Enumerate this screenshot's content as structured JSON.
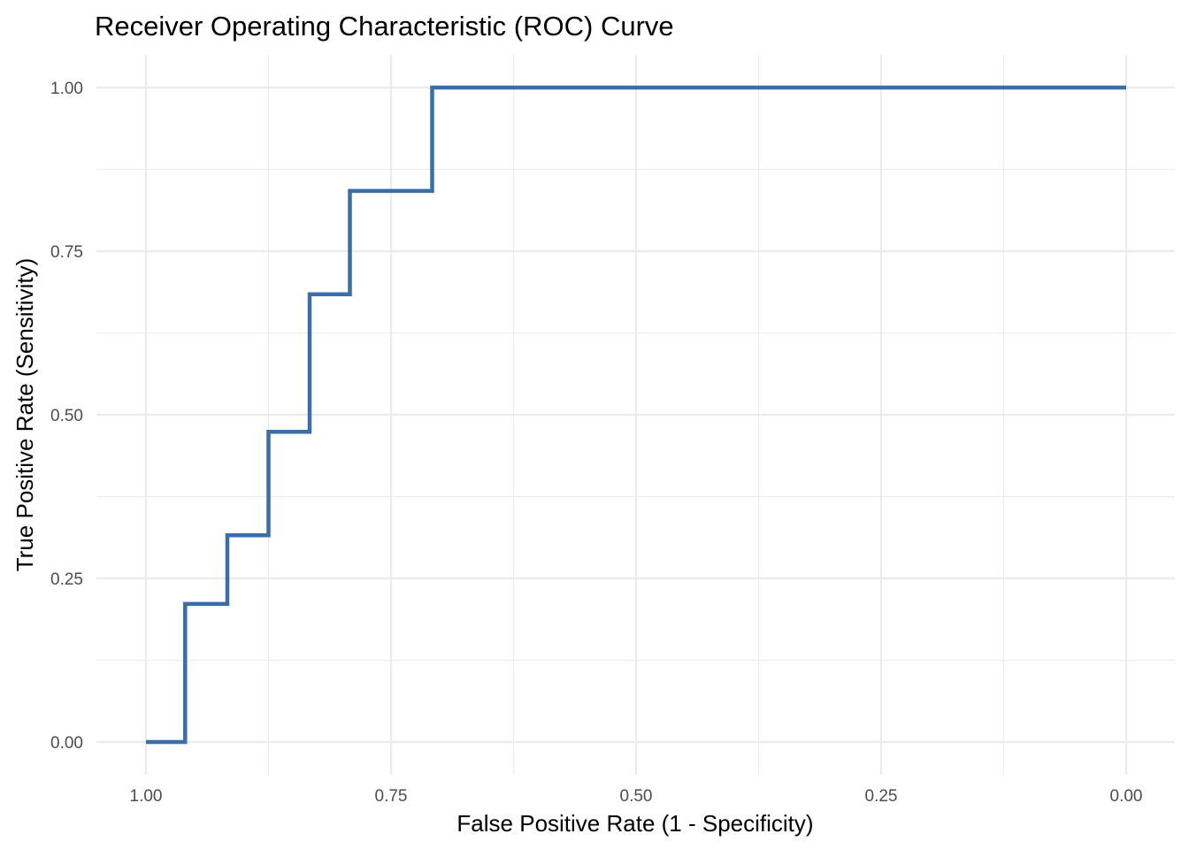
{
  "chart_data": {
    "type": "line",
    "title": "Receiver Operating Characteristic (ROC) Curve",
    "xlabel": "False Positive Rate (1 - Specificity)",
    "ylabel": "True Positive Rate (Sensitivity)",
    "x_reversed": true,
    "xlim": [
      1.0,
      0.0
    ],
    "ylim": [
      0.0,
      1.0
    ],
    "x_ticks": [
      1.0,
      0.75,
      0.5,
      0.25,
      0.0
    ],
    "x_tick_labels": [
      "1.00",
      "0.75",
      "0.50",
      "0.25",
      "0.00"
    ],
    "y_ticks": [
      0.0,
      0.25,
      0.5,
      0.75,
      1.0
    ],
    "y_tick_labels": [
      "0.00",
      "0.25",
      "0.50",
      "0.75",
      "1.00"
    ],
    "grid": true,
    "legend": "none",
    "line_color": "#3a6ea8",
    "series": [
      {
        "x": [
          1.0,
          0.96,
          0.96,
          0.917,
          0.917,
          0.875,
          0.875,
          0.833,
          0.833,
          0.792,
          0.792,
          0.708,
          0.708,
          0.0
        ],
        "y": [
          0.0,
          0.0,
          0.211,
          0.211,
          0.316,
          0.316,
          0.474,
          0.474,
          0.684,
          0.684,
          0.842,
          0.842,
          1.0,
          1.0
        ]
      }
    ]
  }
}
